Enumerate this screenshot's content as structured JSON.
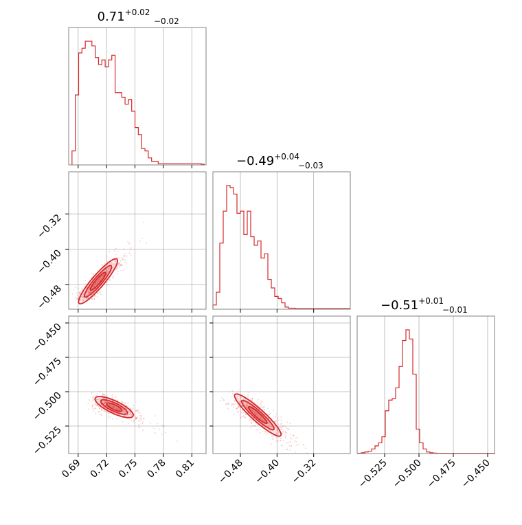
{
  "chart_data": {
    "type": "corner",
    "color": "#d62728",
    "grid": true,
    "titles": [
      {
        "value": "0.71",
        "plus": "+0.02",
        "minus": "−0.02"
      },
      {
        "value": "−0.49",
        "plus": "+0.04",
        "minus": "−0.03"
      },
      {
        "value": "−0.51",
        "plus": "+0.01",
        "minus": "−0.01"
      }
    ],
    "params": [
      {
        "range": [
          0.68,
          0.825
        ],
        "ticks": [
          0.69,
          0.72,
          0.75,
          0.78,
          0.81
        ],
        "tick_labels": [
          "0.69",
          "0.72",
          "0.75",
          "0.78",
          "0.81"
        ]
      },
      {
        "range": [
          -0.54,
          -0.24
        ],
        "ticks": [
          -0.48,
          -0.4,
          -0.32
        ],
        "tick_labels": [
          "−0.48",
          "−0.40",
          "−0.32"
        ],
        "y_ticks": [
          -0.48,
          -0.4,
          -0.32
        ],
        "y_tick_labels": [
          "−0.48",
          "−0.40",
          "−0.32"
        ],
        "y_range": [
          -0.535,
          -0.225
        ]
      },
      {
        "range": [
          -0.545,
          -0.445
        ],
        "ticks": [
          -0.525,
          -0.5,
          -0.475,
          -0.45
        ],
        "tick_labels": [
          "−0.525",
          "−0.500",
          "−0.475",
          "−0.450"
        ]
      }
    ],
    "row3_y": {
      "range": [
        -0.545,
        -0.445
      ],
      "ticks": [
        -0.45,
        -0.475,
        -0.5,
        -0.525
      ],
      "tick_labels": [
        "−0.450",
        "−0.475",
        "−0.500",
        "−0.525"
      ]
    },
    "histograms": [
      {
        "bin_start": 0.6835,
        "bin_width": 0.0035,
        "counts": [
          0.6,
          3.0,
          4.8,
          5.0,
          5.3,
          5.3,
          5.1,
          4.6,
          4.3,
          4.5,
          4.2,
          4.5,
          4.7,
          3.1,
          3.1,
          2.9,
          2.6,
          2.8,
          2.3,
          1.6,
          1.3,
          0.7,
          0.6,
          0.3,
          0.15,
          0.15,
          0.05,
          0.05,
          0.05,
          0.05,
          0.05,
          0.05,
          0.05,
          0.05,
          0.05,
          0.05,
          0.05,
          0.05,
          0.05,
          0.03
        ]
      },
      {
        "bin_start": -0.54,
        "bin_width": 0.0075,
        "counts": [
          0.2,
          0.8,
          3.1,
          4.6,
          5.8,
          5.7,
          5.4,
          4.5,
          4.6,
          3.5,
          4.6,
          3.4,
          3.0,
          3.2,
          2.4,
          2.6,
          1.4,
          1.0,
          0.6,
          0.5,
          0.3,
          0.1,
          0.05,
          0.05,
          0.03,
          0.03,
          0.03,
          0.03,
          0.03,
          0.03,
          0.03,
          0.03,
          0.03,
          0.03,
          0.03,
          0.03,
          0.03,
          0.03,
          0.03,
          0.03
        ]
      },
      {
        "bin_start": -0.5445,
        "bin_width": 0.0025,
        "counts": [
          0.02,
          0.05,
          0.1,
          0.15,
          0.3,
          0.5,
          0.7,
          1.1,
          2.8,
          3.5,
          3.6,
          4.3,
          5.7,
          7.4,
          8.1,
          7.5,
          5.2,
          1.6,
          0.7,
          0.3,
          0.1,
          0.05,
          0.03,
          0.02,
          0.02,
          0.02,
          0.02,
          0.02,
          0.02,
          0.02,
          0.02,
          0.02,
          0.02,
          0.02,
          0.02,
          0.02,
          0.02,
          0.02,
          0.02,
          0.02
        ]
      }
    ],
    "scatter": [
      {
        "xi": 0,
        "yi": 1,
        "center": [
          0.695,
          -0.512
        ],
        "dir": [
          0.04,
          0.1
        ],
        "spread": [
          0.012,
          0.004
        ]
      },
      {
        "xi": 0,
        "yi": 2,
        "center": [
          0.712,
          -0.506
        ],
        "dir": [
          0.04,
          -0.013
        ],
        "spread": [
          0.014,
          0.005
        ]
      },
      {
        "xi": 1,
        "yi": 2,
        "center": [
          -0.482,
          -0.505
        ],
        "dir": [
          0.1,
          -0.03
        ],
        "spread": [
          0.035,
          0.004
        ]
      }
    ]
  }
}
